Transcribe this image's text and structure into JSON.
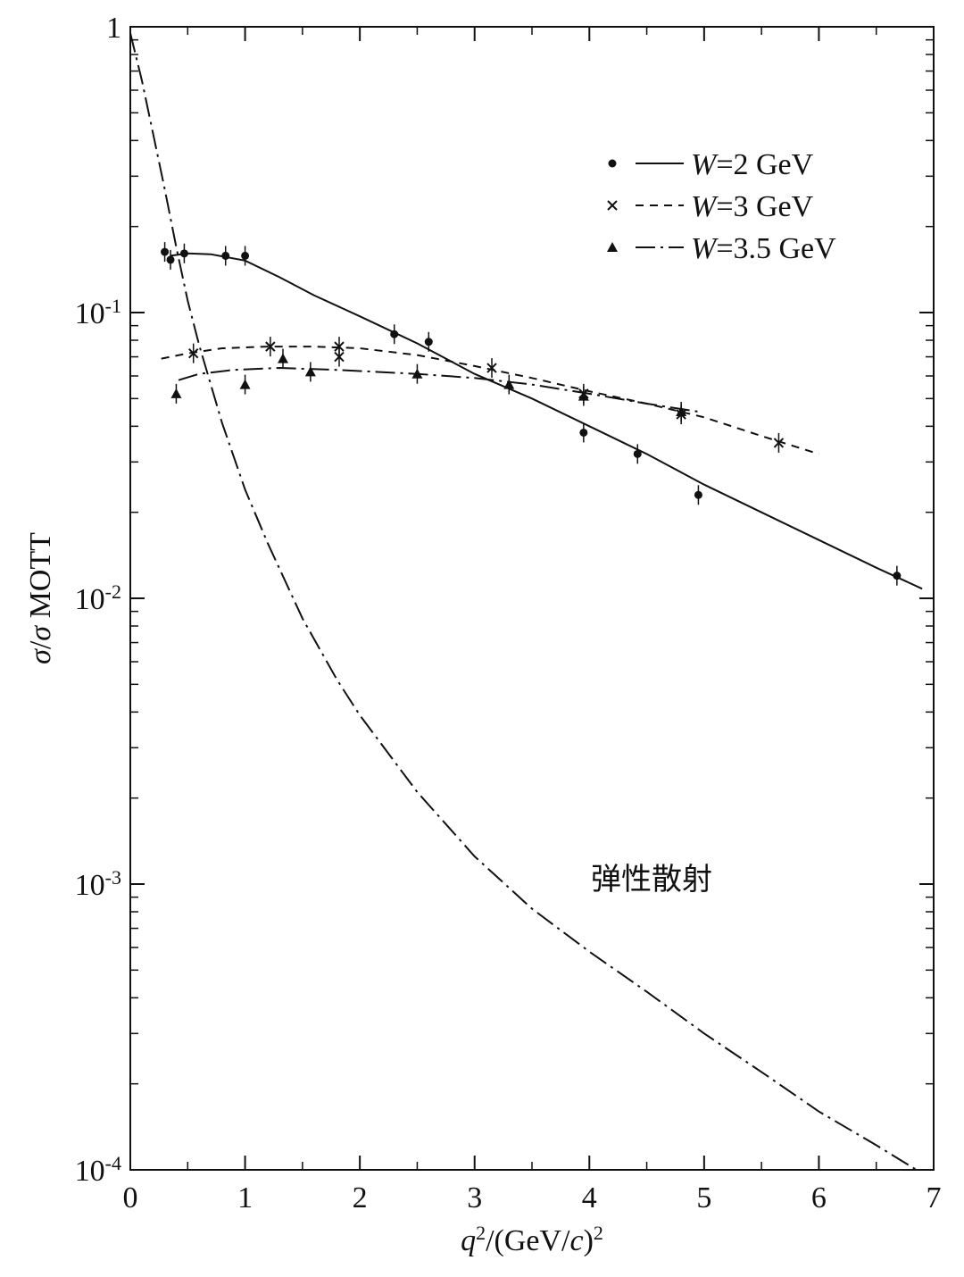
{
  "chart_data": {
    "type": "line",
    "y_scale": "log",
    "xlim": [
      0,
      7
    ],
    "ylim": [
      0.0001,
      1
    ],
    "x_ticks": [
      "0",
      "1",
      "2",
      "3",
      "4",
      "5",
      "6",
      "7"
    ],
    "y_ticks": [
      {
        "value": 1,
        "base": "1",
        "exp": ""
      },
      {
        "value": 0.1,
        "base": "10",
        "exp": "-1"
      },
      {
        "value": 0.01,
        "base": "10",
        "exp": "-2"
      },
      {
        "value": 0.001,
        "base": "10",
        "exp": "-3"
      },
      {
        "value": 0.0001,
        "base": "10",
        "exp": "-4"
      }
    ],
    "xlabel": {
      "q": "q",
      "sup": "2",
      "mid": "/(GeV/",
      "c": "c",
      "close": ")",
      "sup2": "2"
    },
    "ylabel": {
      "sigma1": "σ",
      "slash": "/",
      "sigma2": "σ",
      "rest": " MOTT"
    },
    "series": [
      {
        "name_prefix": "W",
        "name_suffix": "=2 GeV",
        "style": "solid",
        "marker": "dot",
        "curve": [
          [
            0.35,
            0.158
          ],
          [
            0.5,
            0.161
          ],
          [
            0.7,
            0.16
          ],
          [
            1.0,
            0.152
          ],
          [
            1.3,
            0.133
          ],
          [
            1.6,
            0.115
          ],
          [
            2.0,
            0.097
          ],
          [
            2.5,
            0.078
          ],
          [
            3.0,
            0.061
          ],
          [
            3.5,
            0.05
          ],
          [
            4.0,
            0.04
          ],
          [
            4.5,
            0.032
          ],
          [
            5.0,
            0.025
          ],
          [
            5.5,
            0.02
          ],
          [
            6.0,
            0.016
          ],
          [
            6.5,
            0.0128
          ],
          [
            6.9,
            0.0108
          ]
        ],
        "points": [
          [
            0.3,
            0.163
          ],
          [
            0.35,
            0.153
          ],
          [
            0.47,
            0.161
          ],
          [
            0.83,
            0.158
          ],
          [
            1.0,
            0.158
          ],
          [
            2.3,
            0.084
          ],
          [
            2.6,
            0.079
          ],
          [
            3.95,
            0.038
          ],
          [
            4.42,
            0.032
          ],
          [
            4.95,
            0.023
          ],
          [
            6.68,
            0.012
          ]
        ]
      },
      {
        "name_prefix": "W",
        "name_suffix": "=3 GeV",
        "style": "dashed",
        "marker": "cross",
        "curve": [
          [
            0.27,
            0.069
          ],
          [
            0.5,
            0.072
          ],
          [
            0.8,
            0.075
          ],
          [
            1.2,
            0.076
          ],
          [
            1.6,
            0.076
          ],
          [
            2.0,
            0.075
          ],
          [
            2.5,
            0.071
          ],
          [
            3.0,
            0.065
          ],
          [
            3.5,
            0.059
          ],
          [
            4.0,
            0.053
          ],
          [
            4.5,
            0.048
          ],
          [
            5.0,
            0.043
          ],
          [
            5.5,
            0.037
          ],
          [
            6.0,
            0.032
          ]
        ],
        "points": [
          [
            0.55,
            0.072
          ],
          [
            1.22,
            0.076
          ],
          [
            1.82,
            0.076
          ],
          [
            1.82,
            0.07
          ],
          [
            3.15,
            0.064
          ],
          [
            3.95,
            0.052
          ],
          [
            4.8,
            0.044
          ],
          [
            5.65,
            0.035
          ]
        ]
      },
      {
        "name_prefix": "W",
        "name_suffix": "=3.5 GeV",
        "style": "dash-dot",
        "marker": "triangle",
        "curve": [
          [
            0.42,
            0.058
          ],
          [
            0.6,
            0.061
          ],
          [
            0.9,
            0.063
          ],
          [
            1.3,
            0.064
          ],
          [
            1.8,
            0.063
          ],
          [
            2.5,
            0.061
          ],
          [
            3.0,
            0.059
          ],
          [
            3.5,
            0.056
          ],
          [
            4.0,
            0.052
          ],
          [
            4.5,
            0.048
          ],
          [
            4.95,
            0.045
          ]
        ],
        "points": [
          [
            0.4,
            0.052
          ],
          [
            1.0,
            0.056
          ],
          [
            1.33,
            0.069
          ],
          [
            1.57,
            0.062
          ],
          [
            2.5,
            0.061
          ],
          [
            3.3,
            0.056
          ],
          [
            3.95,
            0.051
          ],
          [
            4.8,
            0.045
          ]
        ]
      },
      {
        "label": "弹性散射",
        "style": "dash-dot",
        "curve": [
          [
            0.0,
            0.95
          ],
          [
            0.1,
            0.65
          ],
          [
            0.2,
            0.42
          ],
          [
            0.3,
            0.27
          ],
          [
            0.4,
            0.17
          ],
          [
            0.5,
            0.11
          ],
          [
            0.6,
            0.077
          ],
          [
            0.8,
            0.041
          ],
          [
            1.0,
            0.024
          ],
          [
            1.2,
            0.0155
          ],
          [
            1.5,
            0.0085
          ],
          [
            1.8,
            0.0052
          ],
          [
            2.0,
            0.0039
          ],
          [
            2.5,
            0.0021
          ],
          [
            3.0,
            0.00125
          ],
          [
            3.5,
            0.00082
          ],
          [
            4.0,
            0.00058
          ],
          [
            4.5,
            0.00042
          ],
          [
            5.0,
            0.0003
          ],
          [
            5.5,
            0.00022
          ],
          [
            6.0,
            0.00016
          ],
          [
            6.5,
            0.000122
          ],
          [
            6.85,
            0.0001
          ]
        ]
      }
    ]
  }
}
